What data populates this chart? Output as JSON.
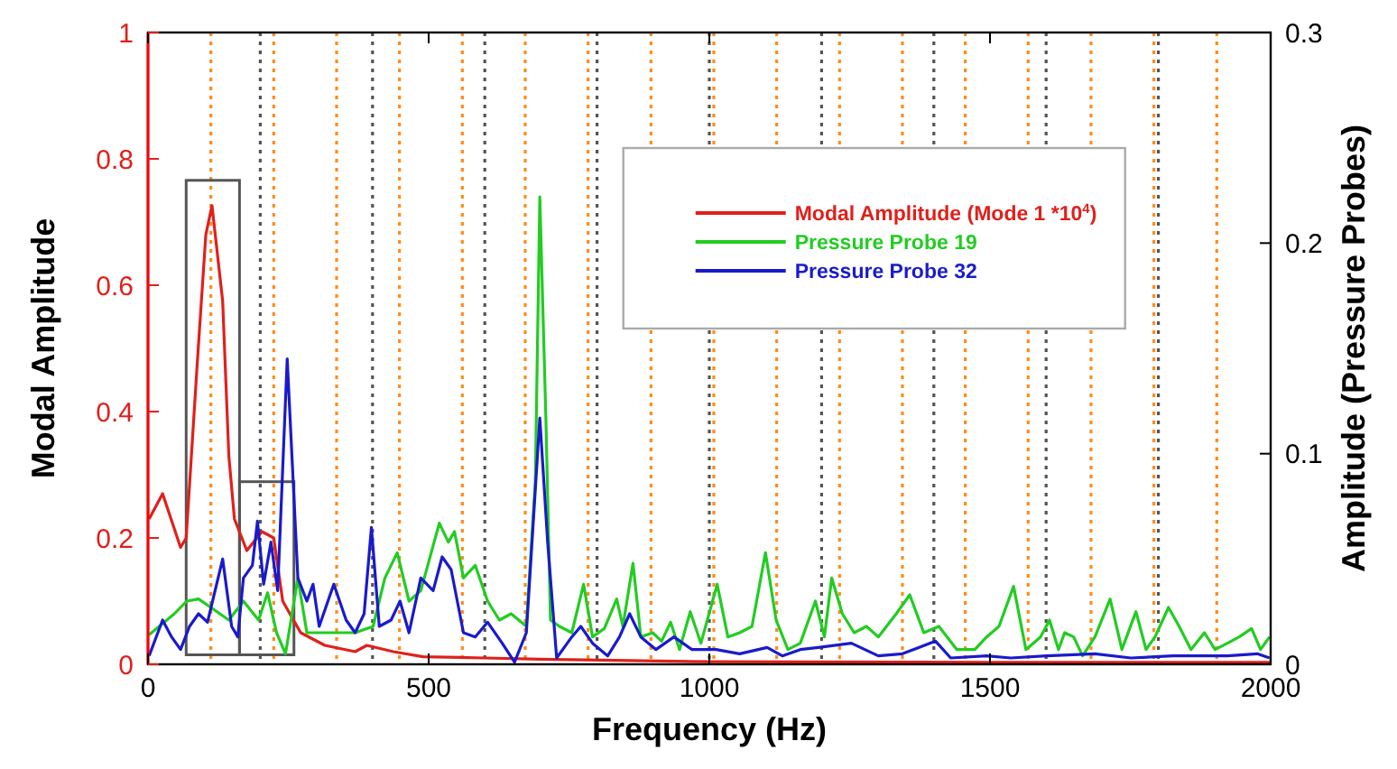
{
  "chart_data": {
    "type": "line",
    "xlabel": "Frequency (Hz)",
    "ylabel": "Modal Amplitude",
    "y2label": "Amplitude (Pressure Probes)",
    "xlim": [
      0,
      2000
    ],
    "xticks": [
      0,
      500,
      1000,
      1500,
      2000
    ],
    "ylim": [
      0,
      1
    ],
    "yticks": [
      0,
      0.2,
      0.4,
      0.6,
      0.8,
      1
    ],
    "y2lim": [
      0,
      0.3
    ],
    "y2ticks": [
      0,
      0.1,
      0.2,
      0.3
    ],
    "grid": false,
    "legend": "top right",
    "marker": "none",
    "line_style": "solid",
    "ref_lines": [
      {
        "axis": "x",
        "value": 112,
        "color": "#ff8c1a",
        "line_style": "dotted"
      },
      {
        "axis": "x",
        "value": 224,
        "color": "#ff8c1a",
        "line_style": "dotted"
      },
      {
        "axis": "x",
        "value": 336,
        "color": "#ff8c1a",
        "line_style": "dotted"
      },
      {
        "axis": "x",
        "value": 448,
        "color": "#ff8c1a",
        "line_style": "dotted"
      },
      {
        "axis": "x",
        "value": 560,
        "color": "#ff8c1a",
        "line_style": "dotted"
      },
      {
        "axis": "x",
        "value": 672,
        "color": "#ff8c1a",
        "line_style": "dotted"
      },
      {
        "axis": "x",
        "value": 784,
        "color": "#ff8c1a",
        "line_style": "dotted"
      },
      {
        "axis": "x",
        "value": 896,
        "color": "#ff8c1a",
        "line_style": "dotted"
      },
      {
        "axis": "x",
        "value": 1008,
        "color": "#ff8c1a",
        "line_style": "dotted"
      },
      {
        "axis": "x",
        "value": 1120,
        "color": "#ff8c1a",
        "line_style": "dotted"
      },
      {
        "axis": "x",
        "value": 1232,
        "color": "#ff8c1a",
        "line_style": "dotted"
      },
      {
        "axis": "x",
        "value": 1344,
        "color": "#ff8c1a",
        "line_style": "dotted"
      },
      {
        "axis": "x",
        "value": 1456,
        "color": "#ff8c1a",
        "line_style": "dotted"
      },
      {
        "axis": "x",
        "value": 1568,
        "color": "#ff8c1a",
        "line_style": "dotted"
      },
      {
        "axis": "x",
        "value": 1680,
        "color": "#ff8c1a",
        "line_style": "dotted"
      },
      {
        "axis": "x",
        "value": 1792,
        "color": "#ff8c1a",
        "line_style": "dotted"
      },
      {
        "axis": "x",
        "value": 1904,
        "color": "#ff8c1a",
        "line_style": "dotted"
      },
      {
        "axis": "x",
        "value": 200,
        "color": "#555555",
        "line_style": "dotted"
      },
      {
        "axis": "x",
        "value": 400,
        "color": "#555555",
        "line_style": "dotted"
      },
      {
        "axis": "x",
        "value": 600,
        "color": "#555555",
        "line_style": "dotted"
      },
      {
        "axis": "x",
        "value": 800,
        "color": "#555555",
        "line_style": "dotted"
      },
      {
        "axis": "x",
        "value": 1000,
        "color": "#555555",
        "line_style": "dotted"
      },
      {
        "axis": "x",
        "value": 1200,
        "color": "#555555",
        "line_style": "dotted"
      },
      {
        "axis": "x",
        "value": 1400,
        "color": "#555555",
        "line_style": "dotted"
      },
      {
        "axis": "x",
        "value": 1600,
        "color": "#555555",
        "line_style": "dotted"
      },
      {
        "axis": "x",
        "value": 1800,
        "color": "#555555",
        "line_style": "dotted"
      }
    ],
    "series": [
      {
        "name": "Modal Amplitude (Mode 1 *10$^{4}$)",
        "color": "#e0201b",
        "x": [
          2,
          26,
          58,
          68,
          88,
          103,
          114,
          133,
          144,
          154,
          176,
          203,
          224,
          240,
          272,
          315,
          369,
          390,
          437,
          490,
          600,
          700,
          1000,
          1500,
          2000
        ],
        "values": [
          0.23,
          0.27,
          0.185,
          0.2,
          0.48,
          0.68,
          0.726,
          0.575,
          0.33,
          0.23,
          0.18,
          0.21,
          0.2,
          0.1,
          0.05,
          0.03,
          0.02,
          0.03,
          0.02,
          0.012,
          0.01,
          0.008,
          0.004,
          0.003,
          0.003
        ]
      },
      {
        "name": "Pressure Probe 19",
        "color": "#22cc22",
        "axis": "y2",
        "x": [
          2,
          47,
          69,
          90,
          112,
          144,
          170,
          197,
          213,
          229,
          245,
          267,
          283,
          326,
          369,
          401,
          422,
          444,
          465,
          486,
          519,
          535,
          546,
          562,
          583,
          605,
          626,
          647,
          674,
          690,
          698,
          709,
          717,
          733,
          755,
          776,
          792,
          813,
          835,
          846,
          864,
          878,
          899,
          915,
          931,
          947,
          966,
          985,
          1014,
          1033,
          1054,
          1076,
          1100,
          1119,
          1140,
          1162,
          1189,
          1205,
          1218,
          1237,
          1258,
          1280,
          1301,
          1333,
          1357,
          1382,
          1409,
          1441,
          1473,
          1494,
          1516,
          1542,
          1564,
          1590,
          1606,
          1622,
          1633,
          1649,
          1665,
          1687,
          1714,
          1735,
          1760,
          1778,
          1794,
          1818,
          1837,
          1858,
          1882,
          1901,
          1923,
          1944,
          1966,
          1982,
          1998
        ],
        "values": [
          0.014,
          0.024,
          0.03,
          0.031,
          0.027,
          0.021,
          0.03,
          0.021,
          0.034,
          0.015,
          0.005,
          0.041,
          0.015,
          0.015,
          0.015,
          0.018,
          0.041,
          0.053,
          0.03,
          0.035,
          0.067,
          0.058,
          0.063,
          0.041,
          0.047,
          0.03,
          0.021,
          0.024,
          0.018,
          0.087,
          0.222,
          0.115,
          0.021,
          0.018,
          0.015,
          0.038,
          0.013,
          0.017,
          0.031,
          0.018,
          0.048,
          0.013,
          0.015,
          0.011,
          0.02,
          0.007,
          0.025,
          0.01,
          0.038,
          0.013,
          0.015,
          0.018,
          0.053,
          0.021,
          0.007,
          0.01,
          0.03,
          0.013,
          0.041,
          0.024,
          0.015,
          0.018,
          0.013,
          0.024,
          0.033,
          0.015,
          0.018,
          0.007,
          0.007,
          0.013,
          0.018,
          0.037,
          0.007,
          0.013,
          0.021,
          0.007,
          0.015,
          0.013,
          0.004,
          0.013,
          0.031,
          0.007,
          0.025,
          0.007,
          0.013,
          0.027,
          0.018,
          0.007,
          0.015,
          0.007,
          0.01,
          0.013,
          0.017,
          0.007,
          0.013
        ]
      },
      {
        "name": "Pressure Probe 32",
        "color": "#1a1acc",
        "axis": "y2",
        "x": [
          2,
          26,
          42,
          58,
          74,
          90,
          106,
          133,
          149,
          160,
          170,
          186,
          195,
          206,
          219,
          231,
          248,
          267,
          283,
          294,
          305,
          331,
          353,
          369,
          385,
          398,
          412,
          433,
          449,
          465,
          486,
          508,
          524,
          540,
          562,
          583,
          605,
          631,
          653,
          674,
          698,
          712,
          728,
          755,
          771,
          792,
          819,
          840,
          858,
          878,
          905,
          937,
          969,
          1012,
          1054,
          1103,
          1130,
          1162,
          1194,
          1253,
          1301,
          1344,
          1403,
          1430,
          1494,
          1537,
          1601,
          1687,
          1751,
          1826,
          1923,
          1976,
          1998
        ],
        "values": [
          0.004,
          0.021,
          0.013,
          0.007,
          0.018,
          0.024,
          0.02,
          0.05,
          0.018,
          0.013,
          0.041,
          0.047,
          0.068,
          0.038,
          0.058,
          0.035,
          0.145,
          0.041,
          0.03,
          0.038,
          0.018,
          0.038,
          0.021,
          0.015,
          0.024,
          0.065,
          0.018,
          0.021,
          0.03,
          0.015,
          0.041,
          0.035,
          0.051,
          0.045,
          0.015,
          0.013,
          0.02,
          0.01,
          0.001,
          0.015,
          0.117,
          0.058,
          0.003,
          0.013,
          0.018,
          0.01,
          0.004,
          0.013,
          0.024,
          0.013,
          0.007,
          0.013,
          0.007,
          0.007,
          0.005,
          0.008,
          0.004,
          0.007,
          0.008,
          0.01,
          0.004,
          0.005,
          0.011,
          0.003,
          0.004,
          0.003,
          0.004,
          0.005,
          0.003,
          0.004,
          0.004,
          0.005,
          0.003
        ]
      }
    ]
  }
}
